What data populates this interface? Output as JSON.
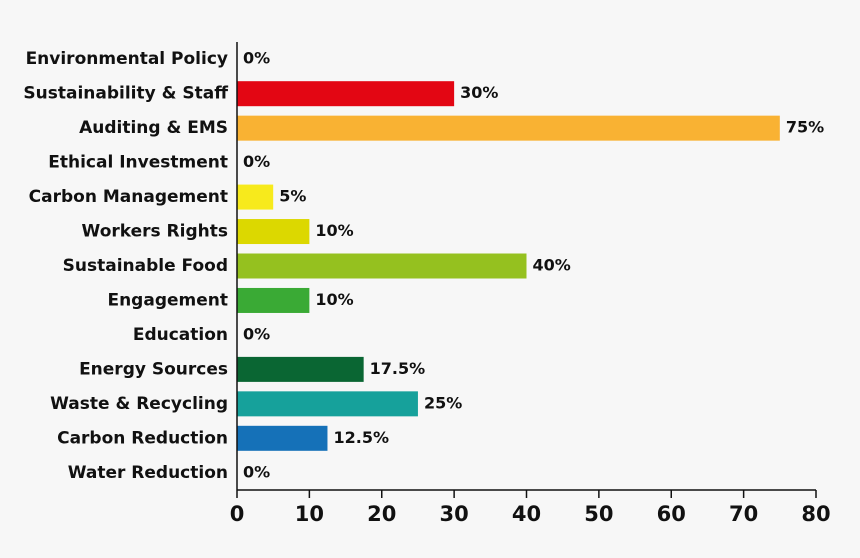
{
  "chart_data": {
    "type": "barh",
    "categories": [
      "Environmental Policy",
      "Sustainability & Staff",
      "Auditing & EMS",
      "Ethical Investment",
      "Carbon Management",
      "Workers Rights",
      "Sustainable Food",
      "Engagement",
      "Education",
      "Energy Sources",
      "Waste & Recycling",
      "Carbon Reduction",
      "Water Reduction"
    ],
    "values": [
      0,
      30,
      75,
      0,
      5,
      10,
      40,
      10,
      0,
      17.5,
      25,
      12.5,
      0
    ],
    "value_labels": [
      "0%",
      "30%",
      "75%",
      "0%",
      "5%",
      "10%",
      "40%",
      "10%",
      "0%",
      "17.5%",
      "25%",
      "12.5%",
      "0%"
    ],
    "colors": [
      null,
      "#e30613",
      "#f9b233",
      null,
      "#f7ea1c",
      "#dcd800",
      "#95c11f",
      "#3aaa35",
      null,
      "#0a6633",
      "#16a19b",
      "#1571b8",
      null
    ],
    "xlim": [
      0,
      80
    ],
    "xticks": [
      0,
      10,
      20,
      30,
      40,
      50,
      60,
      70,
      80
    ]
  }
}
